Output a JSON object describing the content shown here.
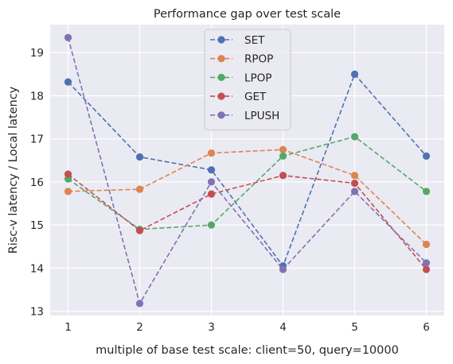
{
  "chart_data": {
    "type": "line",
    "title": "Performance gap over test scale",
    "xlabel": "multiple of base test scale: client=50, query=10000",
    "ylabel": "Risc-v latency / Local latency",
    "x": [
      1,
      2,
      3,
      4,
      5,
      6
    ],
    "xticks": [
      "1",
      "2",
      "3",
      "4",
      "5",
      "6"
    ],
    "yticks": [
      "13",
      "14",
      "15",
      "16",
      "17",
      "18",
      "19"
    ],
    "xlim": [
      0.75,
      6.25
    ],
    "ylim": [
      12.9,
      19.65
    ],
    "grid": true,
    "legend_position": "upper center",
    "series": [
      {
        "name": "SET",
        "color": "#4c72b0",
        "values": [
          18.32,
          16.58,
          16.28,
          14.05,
          18.5,
          16.6
        ]
      },
      {
        "name": "RPOP",
        "color": "#dd8452",
        "values": [
          15.78,
          15.83,
          16.67,
          16.75,
          16.15,
          14.55
        ]
      },
      {
        "name": "LPOP",
        "color": "#55a868",
        "values": [
          16.07,
          14.9,
          15.0,
          16.6,
          17.05,
          15.78
        ]
      },
      {
        "name": "GET",
        "color": "#c44e52",
        "values": [
          16.18,
          14.87,
          15.72,
          16.15,
          15.97,
          13.97
        ]
      },
      {
        "name": "LPUSH",
        "color": "#8172b3",
        "values": [
          19.35,
          13.18,
          16.0,
          13.97,
          15.78,
          14.12
        ]
      }
    ]
  }
}
